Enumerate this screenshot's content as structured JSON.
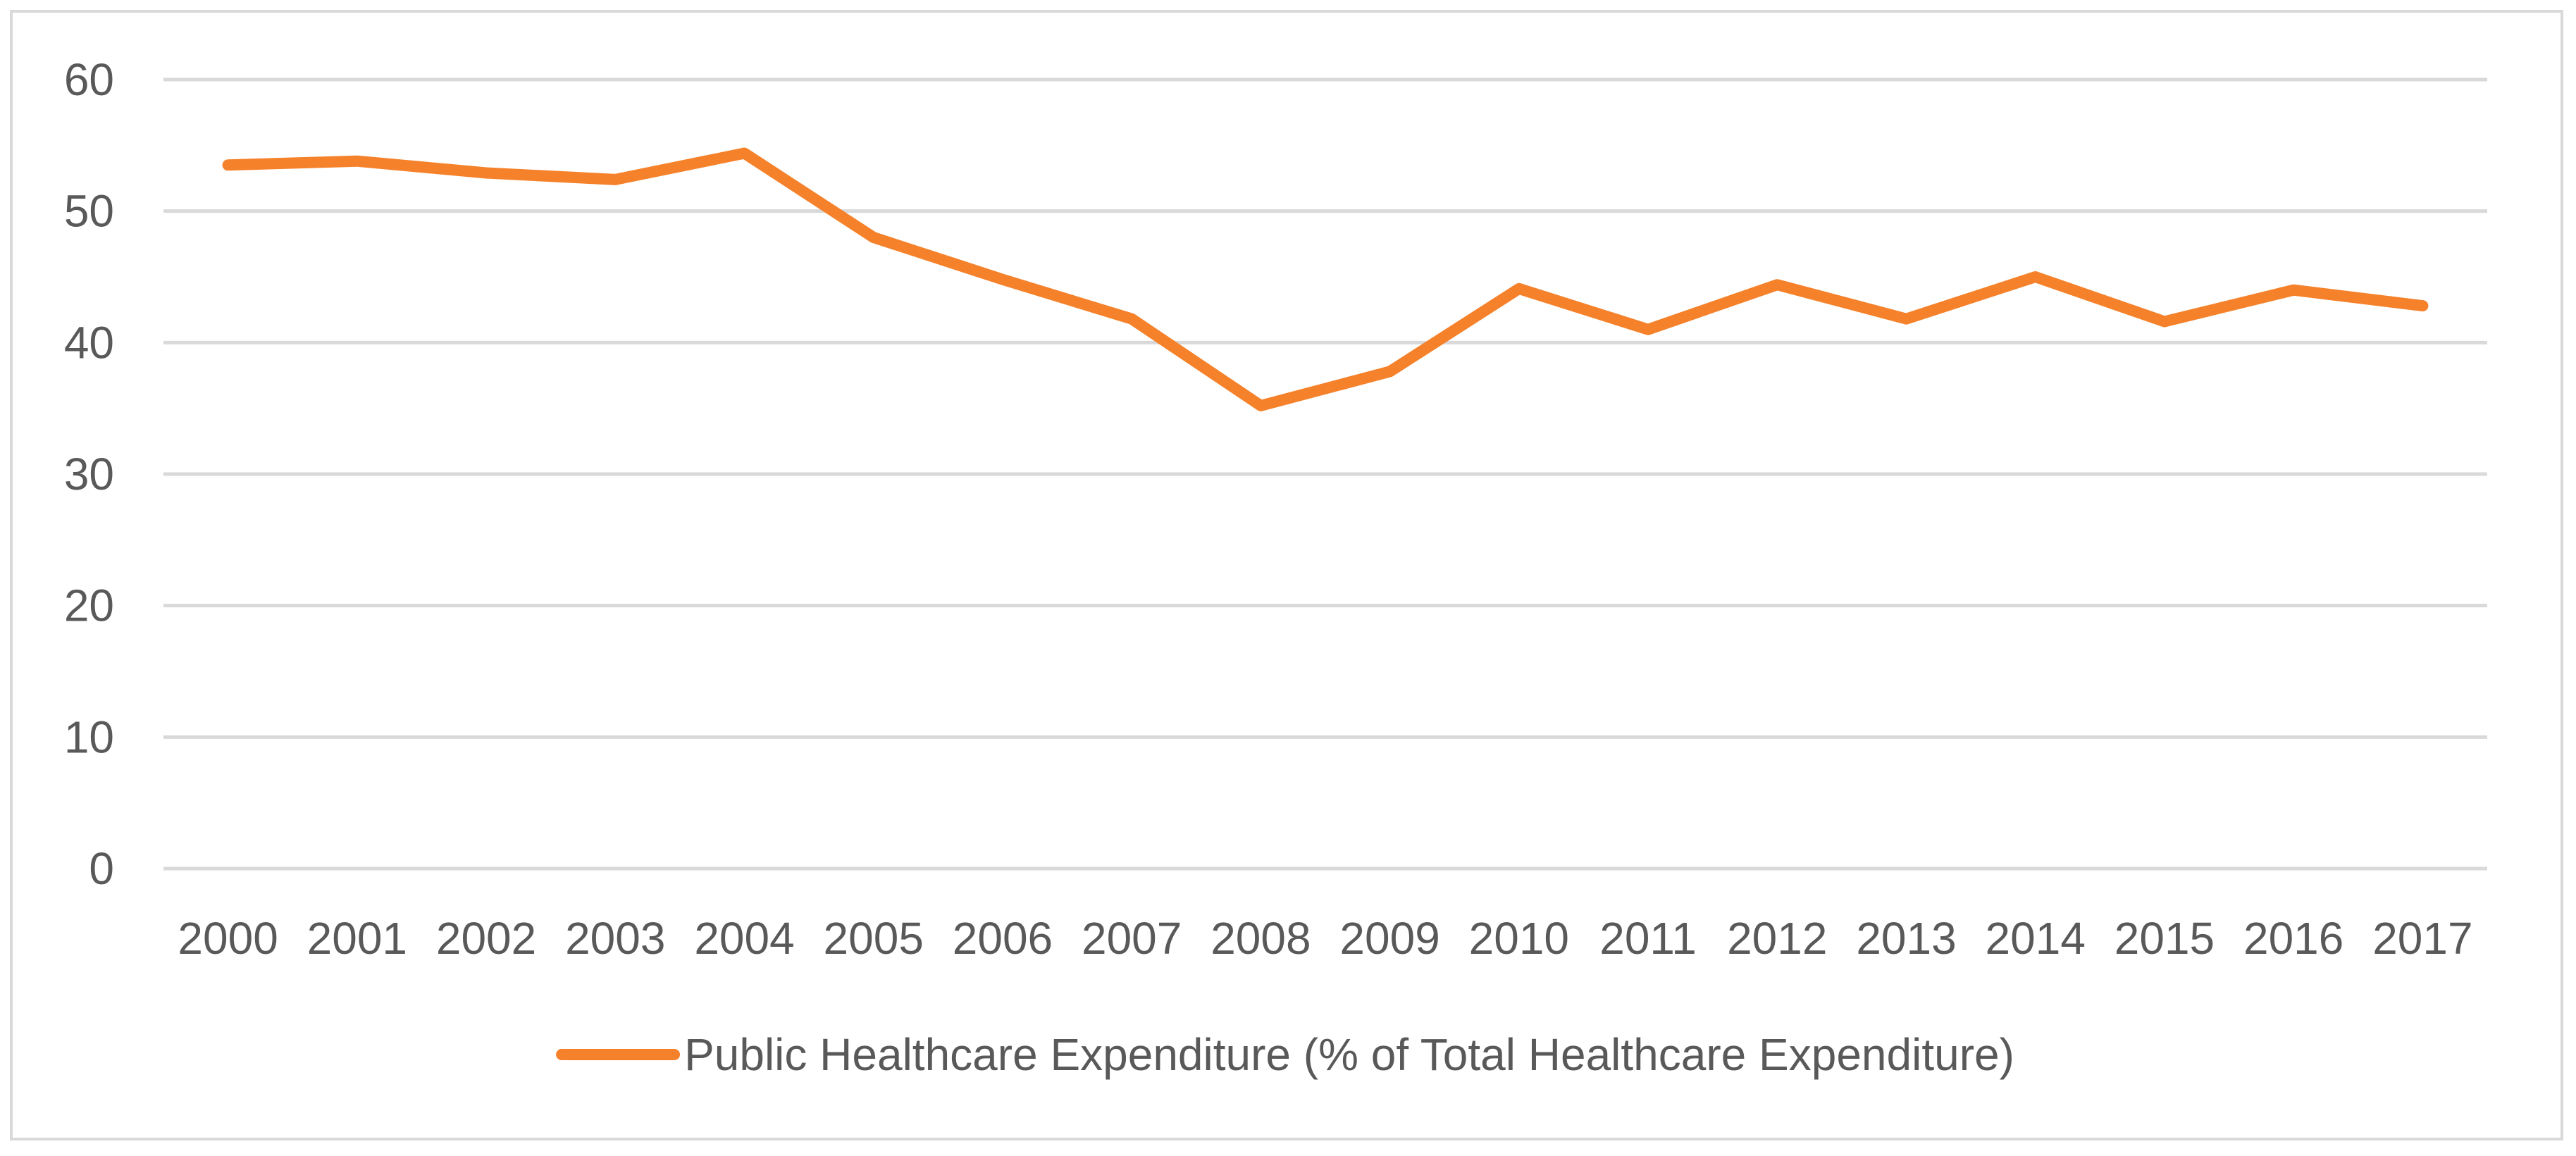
{
  "chart_data": {
    "type": "line",
    "title": "",
    "xlabel": "",
    "ylabel": "",
    "categories": [
      "2000",
      "2001",
      "2002",
      "2003",
      "2004",
      "2005",
      "2006",
      "2007",
      "2008",
      "2009",
      "2010",
      "2011",
      "2012",
      "2013",
      "2014",
      "2015",
      "2016",
      "2017"
    ],
    "series": [
      {
        "name": "Public Healthcare Expenditure (% of Total Healthcare Expenditure)",
        "color": "#f5812a",
        "values": [
          53.5,
          53.8,
          52.9,
          52.4,
          54.4,
          48.0,
          44.8,
          41.8,
          35.2,
          37.8,
          44.1,
          41.0,
          44.4,
          41.8,
          45.0,
          41.6,
          44.0,
          42.8
        ]
      }
    ],
    "ylim": [
      0,
      60
    ],
    "yticks": [
      0,
      10,
      20,
      30,
      40,
      50,
      60
    ],
    "grid": true,
    "legend_position": "bottom"
  },
  "colors": {
    "grid": "#d9d9d9",
    "text": "#595959",
    "border": "#d9d9d9"
  }
}
